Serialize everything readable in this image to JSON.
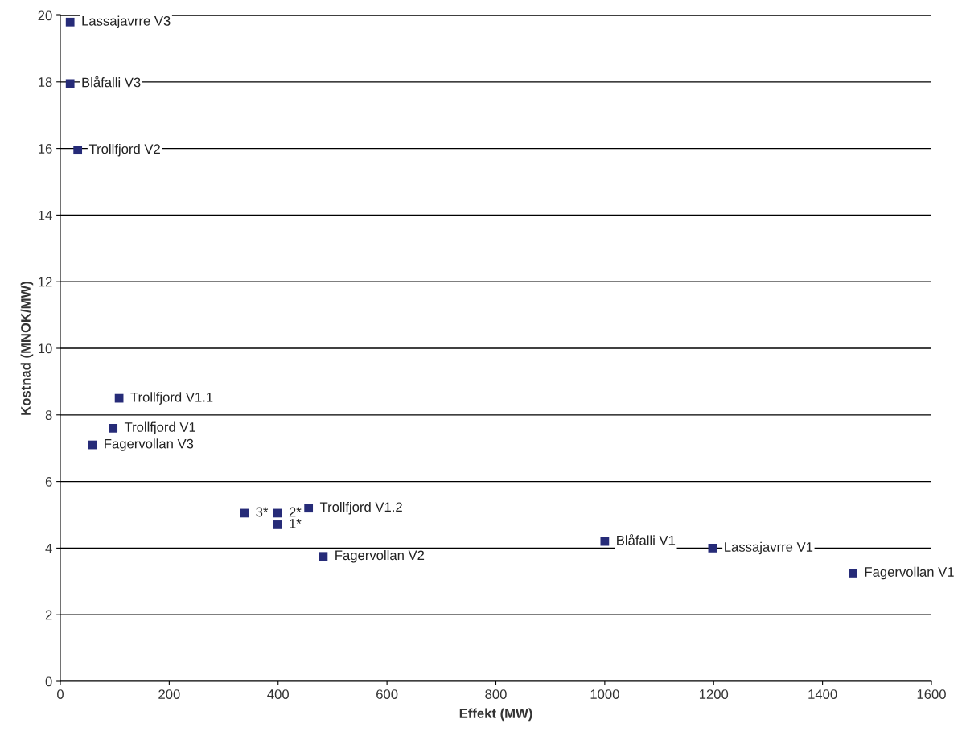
{
  "chart_data": {
    "type": "scatter",
    "xlabel": "Effekt (MW)",
    "ylabel": "Kostnad (MNOK/MW)",
    "x": [
      18,
      18,
      32,
      108,
      97,
      59,
      338,
      399,
      399,
      456,
      483,
      1000,
      1198,
      1456
    ],
    "values": [
      19.8,
      17.95,
      15.95,
      8.5,
      7.6,
      7.1,
      5.05,
      5.05,
      4.7,
      5.2,
      3.75,
      4.2,
      4.0,
      3.25
    ],
    "color": "#262b78",
    "marker": "square",
    "grid": "y",
    "xlim": [
      0,
      1600
    ],
    "xticks": [
      0,
      200,
      400,
      600,
      800,
      1000,
      1200,
      1400,
      1600
    ],
    "ylim": [
      0,
      20
    ],
    "yticks": [
      0,
      2,
      4,
      6,
      8,
      10,
      12,
      14,
      16,
      18,
      20
    ],
    "annotations": [
      {
        "text": "Lassajavrre V3",
        "x": 18,
        "y": 19.8
      },
      {
        "text": "Blåfalli V3",
        "x": 18,
        "y": 17.95
      },
      {
        "text": "Trollfjord V2",
        "x": 32,
        "y": 15.95
      },
      {
        "text": "Trollfjord V1.1",
        "x": 108,
        "y": 8.5
      },
      {
        "text": "Trollfjord V1",
        "x": 97,
        "y": 7.6
      },
      {
        "text": "Fagervollan V3",
        "x": 59,
        "y": 7.1
      },
      {
        "text": "3*",
        "x": 338,
        "y": 5.05
      },
      {
        "text": "2*",
        "x": 399,
        "y": 5.05
      },
      {
        "text": "1*",
        "x": 399,
        "y": 4.7
      },
      {
        "text": "Trollfjord V1.2",
        "x": 456,
        "y": 5.2
      },
      {
        "text": "Fagervollan V2",
        "x": 483,
        "y": 3.75
      },
      {
        "text": "Blåfalli V1",
        "x": 1000,
        "y": 4.2
      },
      {
        "text": "Lassajavrre V1",
        "x": 1198,
        "y": 4.0
      },
      {
        "text": "Fagervollan V1",
        "x": 1456,
        "y": 3.25
      }
    ]
  }
}
